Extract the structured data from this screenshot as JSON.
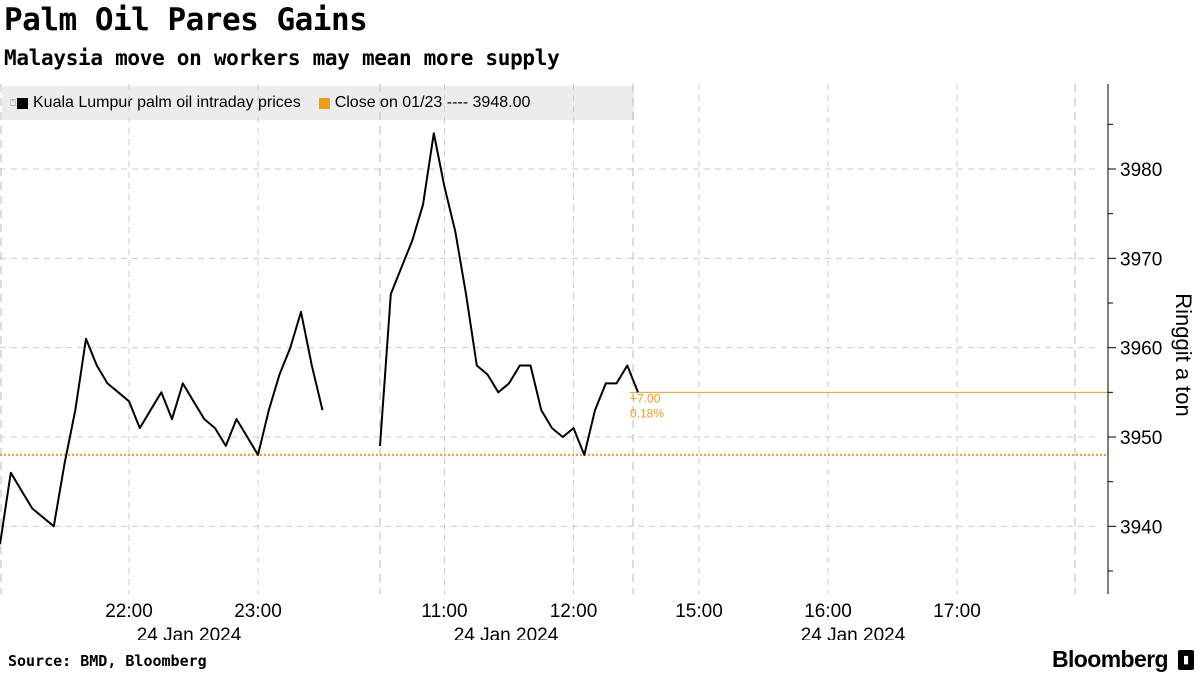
{
  "header": {
    "title": "Palm Oil Pares Gains",
    "subtitle": "Malaysia move on workers may mean more supply"
  },
  "legend": {
    "series_label": "Kuala Lumpur palm oil intraday prices",
    "close_label": "Close on 01/23 ---- 3948.00"
  },
  "footer": {
    "source": "Source: BMD, Bloomberg",
    "brand": "Bloomberg"
  },
  "colors": {
    "series": "#000000",
    "close_line": "#f29b18",
    "grid": "#cccccc"
  },
  "chart_data": {
    "type": "line",
    "title": "Palm Oil Pares Gains",
    "subtitle": "Malaysia move on workers may mean more supply",
    "ylabel": "Ringgit a ton",
    "ylim": [
      3933,
      3990
    ],
    "yticks": [
      3940,
      3950,
      3960,
      3970,
      3980
    ],
    "x_ticks": [
      "22:00",
      "23:00",
      "11:00",
      "12:00",
      "15:00",
      "16:00",
      "17:00"
    ],
    "date_labels": [
      "24 Jan 2024",
      "24 Jan 2024",
      "24 Jan 2024"
    ],
    "reference_line": {
      "label": "Close on 01/23",
      "value": 3948.0
    },
    "last_price": 3955,
    "change_annotation": {
      "change": "+7.00",
      "percent": "0.18%"
    },
    "series": [
      {
        "name": "Kuala Lumpur palm oil intraday prices",
        "session": "night",
        "x": [
          "21:00",
          "21:05",
          "21:10",
          "21:15",
          "21:20",
          "21:25",
          "21:30",
          "21:35",
          "21:40",
          "21:45",
          "21:50",
          "21:55",
          "22:00",
          "22:05",
          "22:10",
          "22:15",
          "22:20",
          "22:25",
          "22:30",
          "22:35",
          "22:40",
          "22:45",
          "22:50",
          "22:55",
          "23:00",
          "23:05",
          "23:10",
          "23:15",
          "23:20",
          "23:25",
          "23:30"
        ],
        "values": [
          3938,
          3946,
          3944,
          3942,
          3941,
          3940,
          3947,
          3953,
          3961,
          3958,
          3956,
          3955,
          3954,
          3951,
          3953,
          3955,
          3952,
          3956,
          3954,
          3952,
          3951,
          3949,
          3952,
          3950,
          3948,
          3953,
          3957,
          3960,
          3964,
          3958,
          3953
        ]
      },
      {
        "name": "Kuala Lumpur palm oil intraday prices",
        "session": "day",
        "x": [
          "10:30",
          "10:35",
          "10:40",
          "10:45",
          "10:50",
          "10:55",
          "11:00",
          "11:05",
          "11:10",
          "11:15",
          "11:20",
          "11:25",
          "11:30",
          "11:35",
          "11:40",
          "11:45",
          "11:50",
          "11:55",
          "12:00",
          "12:05",
          "12:10",
          "12:15",
          "12:20",
          "12:25",
          "12:30"
        ],
        "values": [
          3949,
          3966,
          3969,
          3972,
          3976,
          3984,
          3978,
          3973,
          3966,
          3958,
          3957,
          3955,
          3956,
          3958,
          3958,
          3953,
          3951,
          3950,
          3951,
          3948,
          3953,
          3956,
          3956,
          3958,
          3955
        ]
      }
    ]
  }
}
